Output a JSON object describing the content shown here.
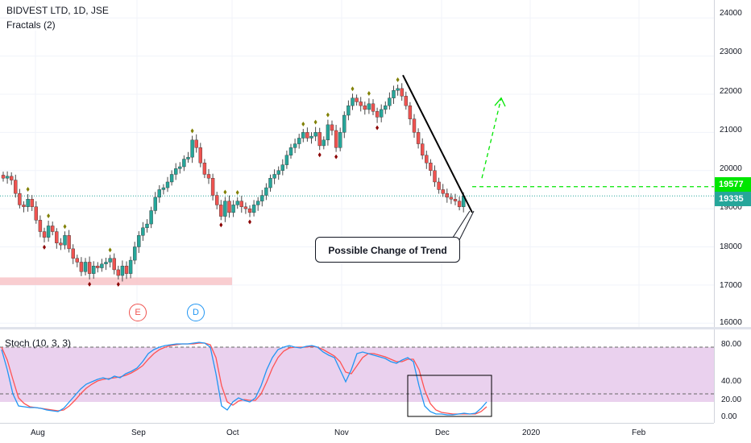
{
  "header": {
    "title": "BIDVEST LTD, 1D, JSE",
    "indicator": "Fractals (2)"
  },
  "oscillator": {
    "label": "Stoch (10, 3, 3)",
    "axis_ticks": [
      "80.00",
      "40.00",
      "20.00",
      "0.00"
    ]
  },
  "price_axis": {
    "ticks": [
      "24000",
      "23000",
      "22000",
      "21000",
      "20000",
      "19000",
      "18000",
      "17000",
      "16000"
    ],
    "target_tag": "19577",
    "current_tag": "19335"
  },
  "time_axis": {
    "ticks": [
      "Aug",
      "Sep",
      "Oct",
      "Nov",
      "Dec",
      "2020",
      "Feb"
    ]
  },
  "annotation": {
    "text": "Possible Change of Trend"
  },
  "events": {
    "earnings": "E",
    "dividend": "D"
  },
  "colors": {
    "bull": "#26a69a",
    "bear": "#ef5350",
    "stoch_k": "#2196f3",
    "stoch_d": "#ff5252",
    "stoch_band": "#e1bee7",
    "support_zone": "#f8c0c4",
    "target_line": "#00e600",
    "fractal_up": "#808000",
    "fractal_down": "#8b0000"
  },
  "chart_data": {
    "type": "candlestick",
    "symbol": "BIDVEST LTD",
    "interval": "1D",
    "exchange": "JSE",
    "ylim": [
      15900,
      24300
    ],
    "last_price": 19335,
    "target_level": 19577,
    "support_zone": [
      17000,
      17200
    ],
    "closes": [
      19800,
      19850,
      19750,
      19400,
      19100,
      19050,
      19250,
      19050,
      18700,
      18400,
      18250,
      18550,
      18400,
      18100,
      18050,
      18300,
      17950,
      17700,
      17600,
      17350,
      17600,
      17300,
      17500,
      17450,
      17550,
      17600,
      17700,
      17400,
      17250,
      17500,
      17300,
      17650,
      18000,
      18300,
      18500,
      18600,
      18950,
      19300,
      19500,
      19550,
      19700,
      19900,
      20050,
      20100,
      20300,
      20350,
      20800,
      20600,
      20200,
      19900,
      19800,
      19350,
      19100,
      18800,
      19200,
      18900,
      19100,
      19200,
      19050,
      19000,
      18900,
      19100,
      19200,
      19350,
      19550,
      19800,
      19900,
      20000,
      20150,
      20400,
      20600,
      20700,
      20850,
      21000,
      20850,
      20900,
      21000,
      20650,
      20800,
      21200,
      21050,
      20600,
      21000,
      21450,
      21700,
      21900,
      21800,
      21700,
      21600,
      21750,
      21550,
      21400,
      21600,
      21700,
      21900,
      22100,
      22150,
      21950,
      21700,
      21350,
      21000,
      20700,
      20400,
      20200,
      20000,
      19700,
      19500,
      19400,
      19300,
      19250,
      19200,
      19050,
      19335
    ],
    "trendline": {
      "from": {
        "date": "2019-11-20",
        "price": 22500
      },
      "to": {
        "date": "2019-12-10",
        "price": 18900
      }
    },
    "projection": {
      "from": {
        "date": "2019-12-11",
        "price": 19800
      },
      "to": {
        "date": "2019-12-17",
        "price": 21900
      }
    },
    "stoch": {
      "k": [
        85,
        60,
        30,
        15,
        14,
        13,
        13,
        12,
        10,
        9,
        8,
        12,
        20,
        28,
        36,
        42,
        45,
        48,
        50,
        48,
        52,
        50,
        55,
        58,
        62,
        70,
        80,
        85,
        88,
        90,
        91,
        92,
        92,
        92,
        93,
        94,
        93,
        88,
        55,
        15,
        10,
        20,
        25,
        22,
        20,
        25,
        40,
        60,
        75,
        85,
        88,
        90,
        88,
        87,
        89,
        90,
        88,
        82,
        78,
        75,
        60,
        45,
        60,
        80,
        82,
        80,
        78,
        76,
        74,
        70,
        68,
        72,
        75,
        70,
        40,
        15,
        8,
        5,
        5,
        4,
        4,
        5,
        6,
        5,
        6,
        12,
        20
      ],
      "d": [
        88,
        72,
        48,
        25,
        18,
        14,
        13,
        12,
        11,
        10,
        9,
        10,
        15,
        22,
        30,
        37,
        42,
        46,
        48,
        49,
        50,
        51,
        53,
        56,
        60,
        65,
        73,
        80,
        85,
        88,
        90,
        91,
        92,
        92,
        92,
        93,
        93,
        91,
        75,
        40,
        20,
        16,
        21,
        23,
        22,
        22,
        30,
        45,
        62,
        75,
        83,
        87,
        88,
        88,
        88,
        89,
        88,
        85,
        81,
        77,
        70,
        57,
        55,
        65,
        75,
        80,
        80,
        78,
        76,
        73,
        70,
        70,
        73,
        73,
        60,
        35,
        18,
        10,
        7,
        6,
        5,
        5,
        5,
        5,
        5,
        8,
        14
      ]
    }
  }
}
